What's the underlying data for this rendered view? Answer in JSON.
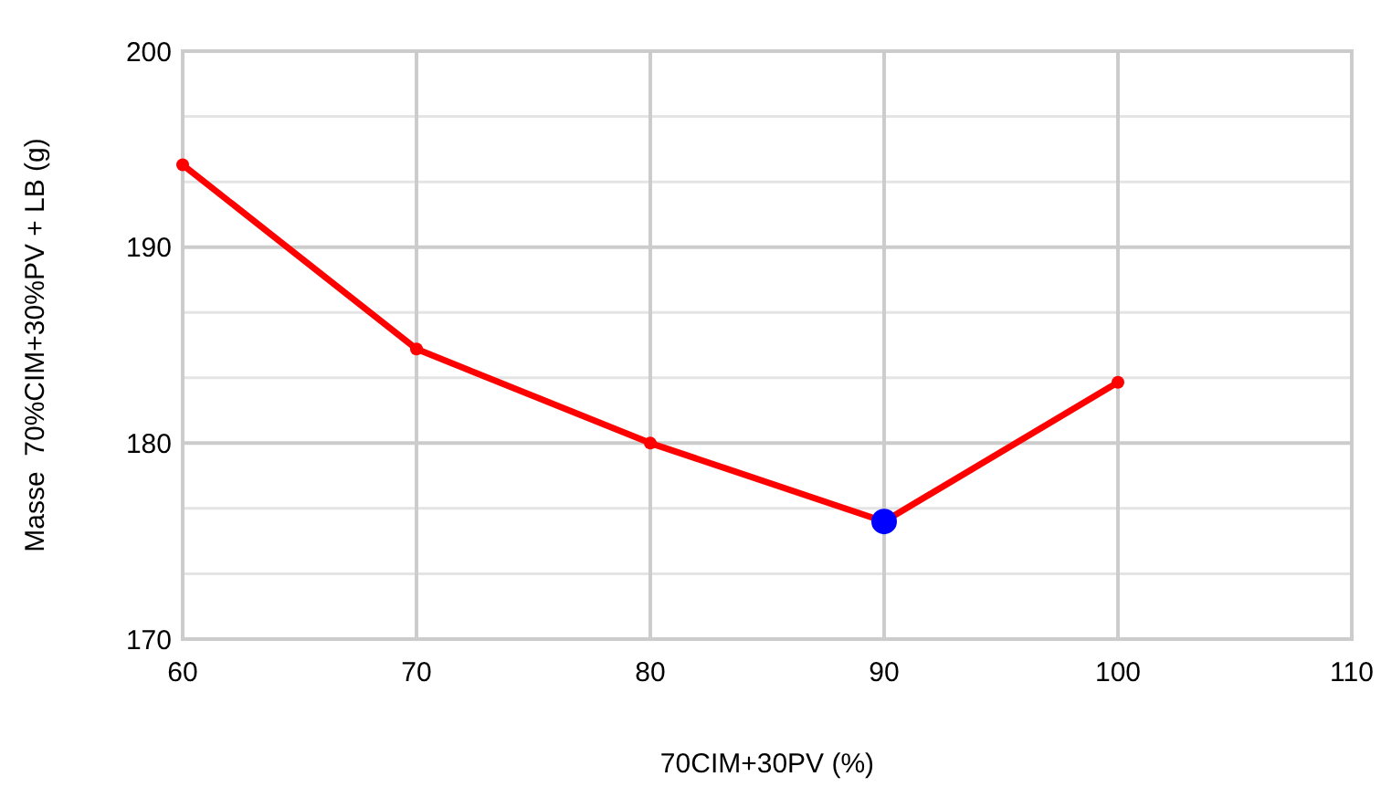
{
  "chart_data": {
    "type": "line",
    "xlabel": "70CIM+30PV (%)",
    "ylabel": "Masse  70%CIM+30%PV + LB (g)",
    "xlim": [
      60,
      110
    ],
    "xticks": [
      60,
      70,
      80,
      90,
      100,
      110
    ],
    "ylim": [
      170,
      200
    ],
    "yticks": [
      170,
      {
        "value": 173.33,
        "label": null
      },
      {
        "value": 176.67,
        "label": null
      },
      180,
      {
        "value": 183.33,
        "label": null
      },
      {
        "value": 186.67,
        "label": null
      },
      190,
      {
        "value": 193.33,
        "label": null
      },
      {
        "value": 196.67,
        "label": null
      },
      200
    ],
    "grid": true,
    "line_style": "solid",
    "series": [
      {
        "color": "#ff0000",
        "marker": "circle",
        "x": [
          60,
          70,
          80,
          90,
          100
        ],
        "values": [
          194.2,
          184.8,
          180.0,
          176.0,
          183.1
        ]
      },
      {
        "type": "scatter",
        "color": "#0000ff",
        "marker": "circle",
        "x": [
          90
        ],
        "values": [
          176.0
        ]
      }
    ]
  }
}
